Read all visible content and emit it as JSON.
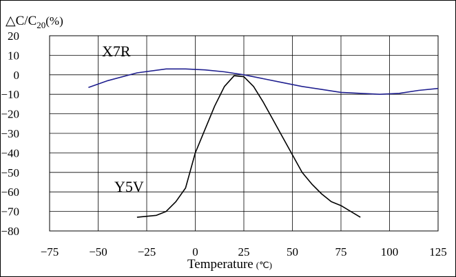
{
  "chart_data": {
    "type": "line",
    "ylabel_prefix": "△C/C",
    "ylabel_sub": "20",
    "ylabel_suffix": "(%)",
    "xlabel": "Temperature",
    "xlabel_unit": "(℃)",
    "xlim": [
      -75,
      125
    ],
    "ylim": [
      -80,
      20
    ],
    "xticks": [
      -75,
      -50,
      -25,
      0,
      25,
      50,
      75,
      100,
      125
    ],
    "yticks": [
      20,
      10,
      0,
      -10,
      -20,
      -30,
      -40,
      -50,
      -60,
      -70,
      -80
    ],
    "grid": true,
    "series": [
      {
        "name": "X7R",
        "color": "#1f1f8f",
        "points": [
          [
            -55,
            -6.5
          ],
          [
            -45,
            -3
          ],
          [
            -30,
            1
          ],
          [
            -15,
            3
          ],
          [
            -5,
            3
          ],
          [
            5,
            2.5
          ],
          [
            15,
            1.5
          ],
          [
            25,
            0
          ],
          [
            35,
            -2
          ],
          [
            45,
            -4
          ],
          [
            55,
            -6
          ],
          [
            65,
            -7.5
          ],
          [
            75,
            -9
          ],
          [
            85,
            -9.5
          ],
          [
            95,
            -10
          ],
          [
            105,
            -9.5
          ],
          [
            115,
            -8
          ],
          [
            125,
            -7
          ]
        ]
      },
      {
        "name": "Y5V",
        "color": "#000000",
        "points": [
          [
            -30,
            -73
          ],
          [
            -20,
            -72
          ],
          [
            -15,
            -70
          ],
          [
            -10,
            -65
          ],
          [
            -5,
            -58
          ],
          [
            0,
            -40
          ],
          [
            5,
            -28
          ],
          [
            10,
            -16
          ],
          [
            15,
            -6
          ],
          [
            20,
            -0.5
          ],
          [
            25,
            -1
          ],
          [
            30,
            -6
          ],
          [
            35,
            -14
          ],
          [
            40,
            -23
          ],
          [
            45,
            -32
          ],
          [
            50,
            -41
          ],
          [
            55,
            -50
          ],
          [
            60,
            -56
          ],
          [
            65,
            -61
          ],
          [
            70,
            -65
          ],
          [
            75,
            -67
          ],
          [
            80,
            -70
          ],
          [
            85,
            -73
          ]
        ]
      }
    ]
  }
}
